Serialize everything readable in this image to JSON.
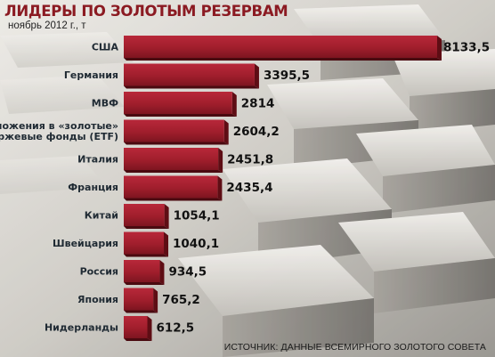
{
  "title": "ЛИДЕРЫ ПО ЗОЛОТЫМ РЕЗЕРВАМ",
  "subtitle": "ноябрь 2012 г., т",
  "source": "ИСТОЧНИК: ДАННЫЕ ВСЕМИРНОГО ЗОЛОТОГО СОВЕТА",
  "chart_data": {
    "type": "bar",
    "orientation": "horizontal",
    "title": "ЛИДЕРЫ ПО ЗОЛОТЫМ РЕЗЕРВАМ",
    "subtitle": "ноябрь 2012 г., т",
    "categories": [
      [
        "США"
      ],
      [
        "Германия"
      ],
      [
        "МВФ"
      ],
      [
        "Вложения в «золотые»",
        "биржевые фонды (ETF)"
      ],
      [
        "Италия"
      ],
      [
        "Франция"
      ],
      [
        "Китай"
      ],
      [
        "Швейцария"
      ],
      [
        "Россия"
      ],
      [
        "Япония"
      ],
      [
        "Нидерланды"
      ]
    ],
    "values": [
      8133.5,
      3395.5,
      2814,
      2604.2,
      2451.8,
      2435.4,
      1054.1,
      1040.1,
      934.5,
      765.2,
      612.5
    ],
    "value_labels": [
      "8133,5",
      "3395,5",
      "2814",
      "2604,2",
      "2451,8",
      "2435,4",
      "1054,1",
      "1040,1",
      "934,5",
      "765,2",
      "612,5"
    ],
    "bar_color": "#a01e2c",
    "bar_edge_color": "#5e0d14",
    "grid": false,
    "legend": "none"
  }
}
